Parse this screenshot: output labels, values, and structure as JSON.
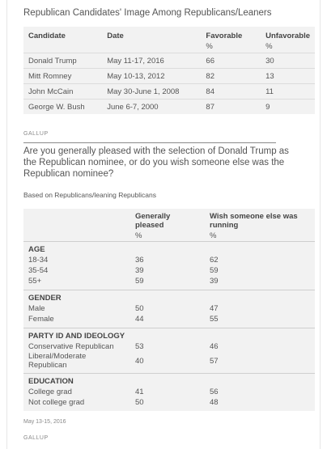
{
  "table1": {
    "title": "Republican Candidates' Image Among Republicans/Leaners",
    "headers": {
      "candidate": "Candidate",
      "date": "Date",
      "favorable": "Favorable",
      "unfavorable": "Unfavorable"
    },
    "units": {
      "favorable": "%",
      "unfavorable": "%"
    },
    "rows": [
      {
        "candidate": "Donald Trump",
        "date": "May 11-17, 2016",
        "favorable": "66",
        "unfavorable": "30"
      },
      {
        "candidate": "Mitt Romney",
        "date": "May 10-13, 2012",
        "favorable": "82",
        "unfavorable": "13"
      },
      {
        "candidate": "John McCain",
        "date": "May 30-June 1, 2008",
        "favorable": "84",
        "unfavorable": "11"
      },
      {
        "candidate": "George W. Bush",
        "date": "June 6-7, 2000",
        "favorable": "87",
        "unfavorable": "9"
      }
    ],
    "source": "GALLUP"
  },
  "table2": {
    "question": "Are you generally pleased with the selection of Donald Trump as the Republican nominee, or do you wish someone else was the Republican nominee?",
    "basis": "Based on Republicans/leaning Republicans",
    "headers": {
      "pleased": "Generally pleased",
      "wish": "Wish someone else was running"
    },
    "units": {
      "pleased": "%",
      "wish": "%"
    },
    "groups": [
      {
        "name": "AGE",
        "rows": [
          {
            "label": "18-34",
            "pleased": "36",
            "wish": "62"
          },
          {
            "label": "35-54",
            "pleased": "39",
            "wish": "59"
          },
          {
            "label": "55+",
            "pleased": "59",
            "wish": "39"
          }
        ]
      },
      {
        "name": "GENDER",
        "rows": [
          {
            "label": "Male",
            "pleased": "50",
            "wish": "47"
          },
          {
            "label": "Female",
            "pleased": "44",
            "wish": "55"
          }
        ]
      },
      {
        "name": "PARTY ID AND IDEOLOGY",
        "rows": [
          {
            "label": "Conservative Republican",
            "pleased": "53",
            "wish": "46"
          },
          {
            "label": "Liberal/Moderate Republican",
            "pleased": "40",
            "wish": "57"
          }
        ]
      },
      {
        "name": "EDUCATION",
        "rows": [
          {
            "label": "College grad",
            "pleased": "41",
            "wish": "56"
          },
          {
            "label": "Not college grad",
            "pleased": "50",
            "wish": "48"
          }
        ]
      }
    ],
    "date": "May 13-15, 2016",
    "source": "GALLUP"
  }
}
